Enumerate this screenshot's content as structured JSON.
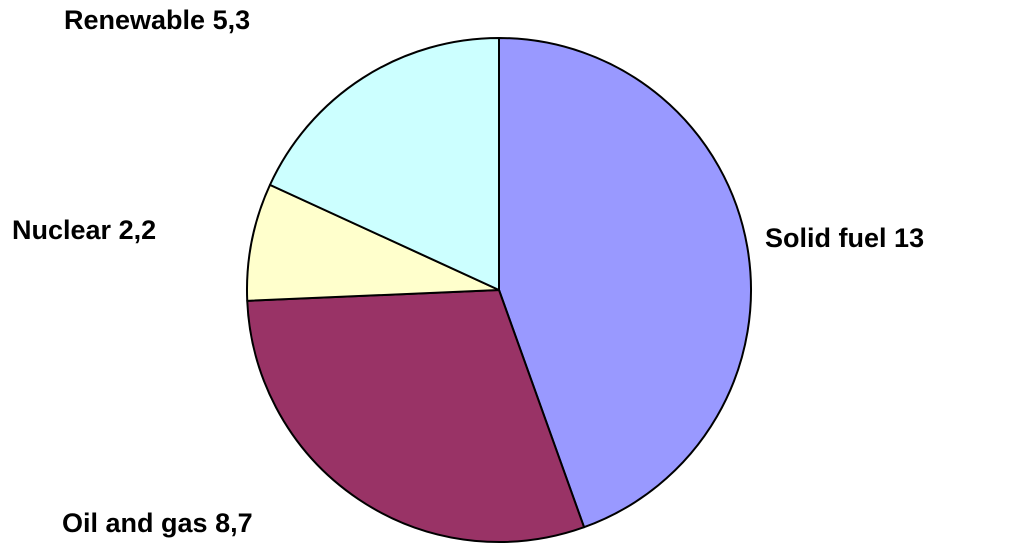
{
  "chart_data": {
    "type": "pie",
    "categories": [
      "Solid fuel",
      "Oil and gas",
      "Nuclear",
      "Renewable"
    ],
    "values": [
      13,
      8.7,
      2.2,
      5.3
    ],
    "value_labels": [
      "13",
      "8,7",
      "2,2",
      "5,3"
    ],
    "colors": [
      "#9999ff",
      "#993366",
      "#ffffcc",
      "#ccffff"
    ]
  }
}
